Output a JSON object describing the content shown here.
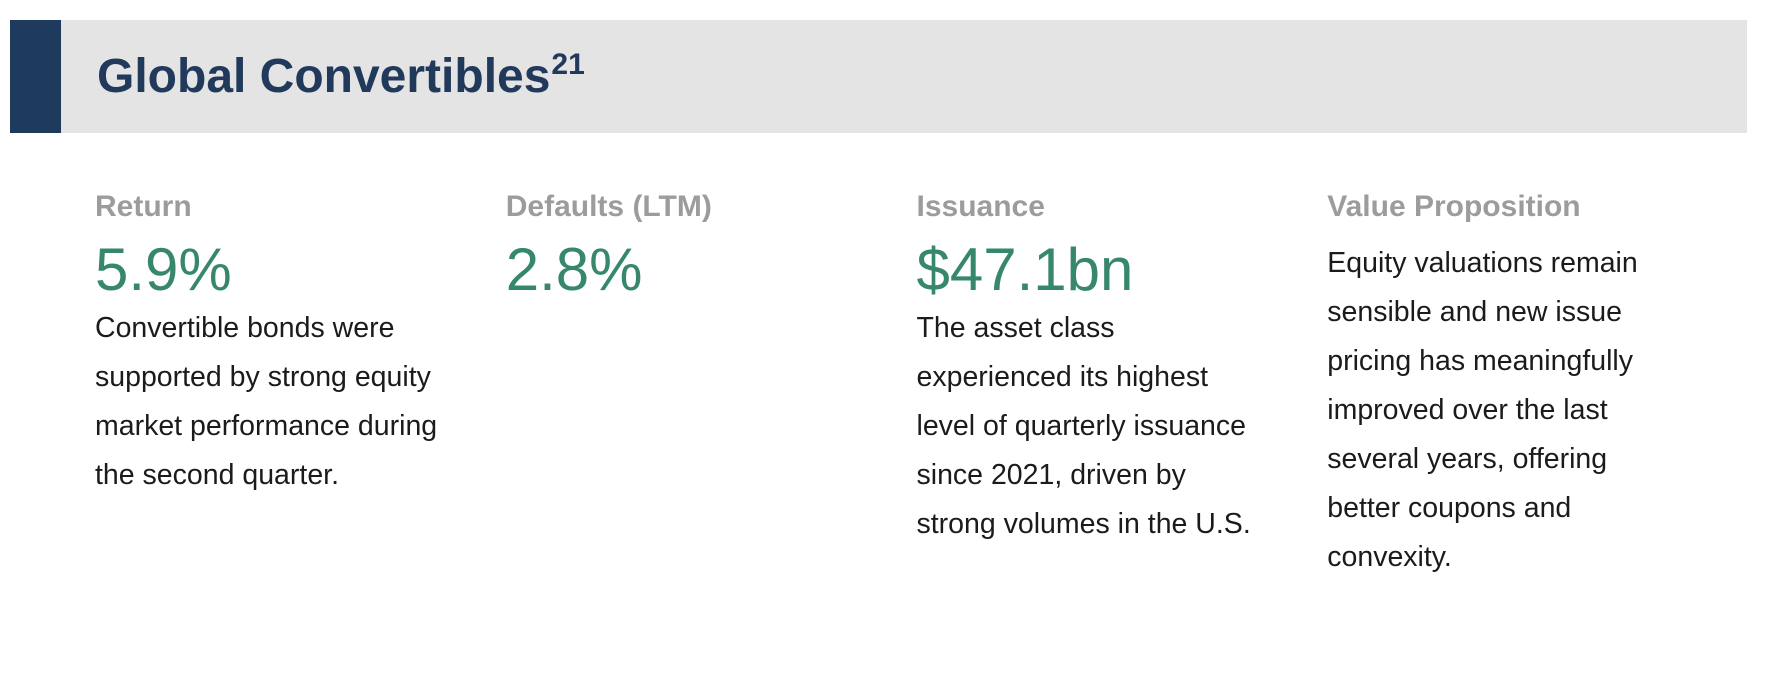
{
  "header": {
    "title": "Global Convertibles",
    "superscript": "21"
  },
  "colors": {
    "accent_navy": "#1E3A5C",
    "title_navy": "#21395B",
    "band_background": "#E4E4E4",
    "value_green": "#37876B",
    "label_gray": "#9C9C9C",
    "body_text": "#1B1B1B"
  },
  "columns": [
    {
      "label": "Return",
      "value": "5.9%",
      "description": "Convertible bonds were supported by strong equity market performance during the second quarter."
    },
    {
      "label": "Defaults (LTM)",
      "value": "2.8%",
      "description": ""
    },
    {
      "label": "Issuance",
      "value": "$47.1bn",
      "description": "The asset class experienced its highest level of quarterly issuance since 2021, driven by strong volumes in the U.S."
    },
    {
      "label": "Value Proposition",
      "value": "",
      "description": "Equity valuations remain sensible and new issue pricing has meaningfully improved over the last several years, offering better coupons and convexity."
    }
  ]
}
